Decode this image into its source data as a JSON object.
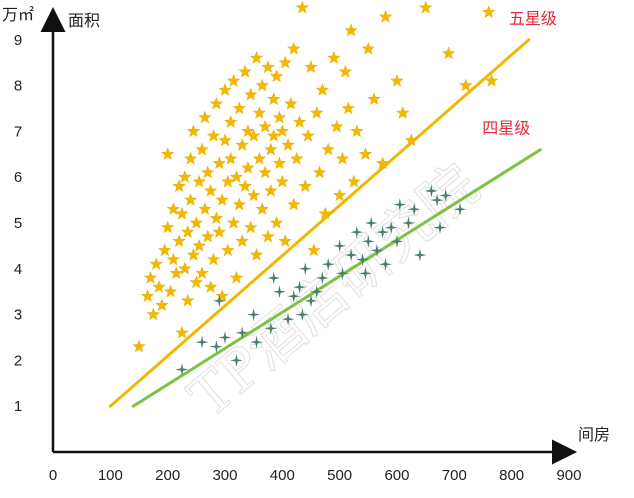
{
  "chart_data": {
    "type": "scatter",
    "title": "",
    "xlabel": "间房",
    "ylabel": "面积",
    "y_unit": "万㎡",
    "x_ticks": [
      0,
      100,
      200,
      300,
      400,
      500,
      600,
      700,
      800,
      900
    ],
    "y_ticks": [
      1,
      2,
      3,
      4,
      5,
      6,
      7,
      8,
      9
    ],
    "xlim": [
      0,
      920
    ],
    "ylim": [
      0,
      9.5
    ],
    "watermark": "TP酒店研究院",
    "series": [
      {
        "name": "五星级",
        "marker": "star",
        "color": "#f5b800",
        "points": [
          [
            150,
            2.3
          ],
          [
            165,
            3.4
          ],
          [
            170,
            3.8
          ],
          [
            175,
            3.0
          ],
          [
            180,
            4.1
          ],
          [
            185,
            3.6
          ],
          [
            190,
            3.2
          ],
          [
            195,
            4.4
          ],
          [
            200,
            4.9
          ],
          [
            200,
            6.5
          ],
          [
            205,
            3.5
          ],
          [
            210,
            4.2
          ],
          [
            210,
            5.3
          ],
          [
            215,
            3.9
          ],
          [
            220,
            4.6
          ],
          [
            220,
            5.8
          ],
          [
            225,
            2.6
          ],
          [
            225,
            5.2
          ],
          [
            230,
            4.0
          ],
          [
            230,
            6.0
          ],
          [
            235,
            4.8
          ],
          [
            235,
            3.3
          ],
          [
            240,
            5.5
          ],
          [
            240,
            6.4
          ],
          [
            245,
            4.3
          ],
          [
            245,
            7.0
          ],
          [
            250,
            3.7
          ],
          [
            250,
            5.0
          ],
          [
            255,
            5.9
          ],
          [
            255,
            4.5
          ],
          [
            260,
            6.6
          ],
          [
            260,
            3.9
          ],
          [
            265,
            5.3
          ],
          [
            265,
            7.3
          ],
          [
            270,
            4.7
          ],
          [
            270,
            6.1
          ],
          [
            275,
            3.6
          ],
          [
            275,
            5.7
          ],
          [
            280,
            6.9
          ],
          [
            280,
            4.2
          ],
          [
            285,
            5.1
          ],
          [
            285,
            7.6
          ],
          [
            290,
            6.3
          ],
          [
            290,
            4.8
          ],
          [
            295,
            5.5
          ],
          [
            295,
            3.4
          ],
          [
            300,
            6.8
          ],
          [
            300,
            7.9
          ],
          [
            305,
            4.4
          ],
          [
            305,
            5.9
          ],
          [
            310,
            7.2
          ],
          [
            310,
            6.4
          ],
          [
            315,
            5.0
          ],
          [
            315,
            8.1
          ],
          [
            320,
            3.8
          ],
          [
            320,
            6.0
          ],
          [
            325,
            7.5
          ],
          [
            325,
            5.4
          ],
          [
            330,
            6.7
          ],
          [
            330,
            4.6
          ],
          [
            335,
            8.3
          ],
          [
            335,
            5.8
          ],
          [
            340,
            7.0
          ],
          [
            340,
            6.2
          ],
          [
            345,
            4.9
          ],
          [
            345,
            7.8
          ],
          [
            350,
            5.6
          ],
          [
            350,
            6.9
          ],
          [
            355,
            8.6
          ],
          [
            355,
            4.3
          ],
          [
            360,
            6.4
          ],
          [
            360,
            7.4
          ],
          [
            365,
            5.3
          ],
          [
            365,
            8.0
          ],
          [
            370,
            6.1
          ],
          [
            370,
            7.1
          ],
          [
            375,
            4.7
          ],
          [
            375,
            8.4
          ],
          [
            380,
            6.6
          ],
          [
            380,
            5.7
          ],
          [
            385,
            7.7
          ],
          [
            385,
            6.9
          ],
          [
            390,
            5.0
          ],
          [
            390,
            8.2
          ],
          [
            395,
            7.3
          ],
          [
            395,
            6.3
          ],
          [
            400,
            5.9
          ],
          [
            400,
            7.0
          ],
          [
            405,
            8.5
          ],
          [
            405,
            4.6
          ],
          [
            410,
            6.7
          ],
          [
            415,
            7.6
          ],
          [
            420,
            5.4
          ],
          [
            420,
            8.8
          ],
          [
            425,
            6.4
          ],
          [
            430,
            7.2
          ],
          [
            435,
            9.7
          ],
          [
            440,
            5.8
          ],
          [
            445,
            6.9
          ],
          [
            450,
            8.4
          ],
          [
            455,
            4.4
          ],
          [
            460,
            7.4
          ],
          [
            465,
            6.1
          ],
          [
            470,
            7.9
          ],
          [
            475,
            5.2
          ],
          [
            480,
            6.6
          ],
          [
            490,
            8.6
          ],
          [
            495,
            7.1
          ],
          [
            500,
            5.6
          ],
          [
            505,
            6.4
          ],
          [
            510,
            8.3
          ],
          [
            515,
            7.5
          ],
          [
            520,
            9.2
          ],
          [
            525,
            5.9
          ],
          [
            530,
            7.0
          ],
          [
            545,
            6.5
          ],
          [
            550,
            8.8
          ],
          [
            560,
            7.7
          ],
          [
            575,
            6.3
          ],
          [
            580,
            9.5
          ],
          [
            600,
            8.1
          ],
          [
            610,
            7.4
          ],
          [
            625,
            6.8
          ],
          [
            650,
            9.7
          ],
          [
            690,
            8.7
          ],
          [
            720,
            8.0
          ],
          [
            760,
            9.6
          ],
          [
            765,
            8.1
          ]
        ]
      },
      {
        "name": "四星级",
        "marker": "sparkle",
        "color": "#4a7e6c",
        "points": [
          [
            225,
            1.8
          ],
          [
            260,
            2.4
          ],
          [
            285,
            2.3
          ],
          [
            290,
            3.3
          ],
          [
            300,
            2.5
          ],
          [
            320,
            2.0
          ],
          [
            330,
            2.6
          ],
          [
            350,
            3.0
          ],
          [
            355,
            2.4
          ],
          [
            380,
            2.7
          ],
          [
            385,
            3.8
          ],
          [
            395,
            3.5
          ],
          [
            410,
            2.9
          ],
          [
            420,
            3.4
          ],
          [
            430,
            3.6
          ],
          [
            435,
            3.0
          ],
          [
            440,
            4.0
          ],
          [
            450,
            3.3
          ],
          [
            460,
            3.5
          ],
          [
            470,
            3.8
          ],
          [
            480,
            4.1
          ],
          [
            500,
            4.5
          ],
          [
            505,
            3.9
          ],
          [
            520,
            4.3
          ],
          [
            530,
            4.8
          ],
          [
            540,
            4.2
          ],
          [
            545,
            3.9
          ],
          [
            550,
            4.6
          ],
          [
            555,
            5.0
          ],
          [
            565,
            4.4
          ],
          [
            575,
            4.8
          ],
          [
            580,
            4.1
          ],
          [
            590,
            4.9
          ],
          [
            600,
            4.6
          ],
          [
            605,
            5.4
          ],
          [
            620,
            5.0
          ],
          [
            630,
            5.3
          ],
          [
            640,
            4.3
          ],
          [
            660,
            5.7
          ],
          [
            670,
            5.5
          ],
          [
            675,
            4.9
          ],
          [
            685,
            5.6
          ],
          [
            710,
            5.3
          ]
        ]
      }
    ],
    "trend_lines": [
      {
        "name": "五星级",
        "label": "五星级",
        "color": "#f2b705",
        "from": [
          100,
          1.0
        ],
        "to": [
          830,
          9.0
        ]
      },
      {
        "name": "四星级",
        "label": "四星级",
        "color": "#7dc242",
        "from": [
          140,
          1.0
        ],
        "to": [
          850,
          6.6
        ]
      }
    ]
  }
}
